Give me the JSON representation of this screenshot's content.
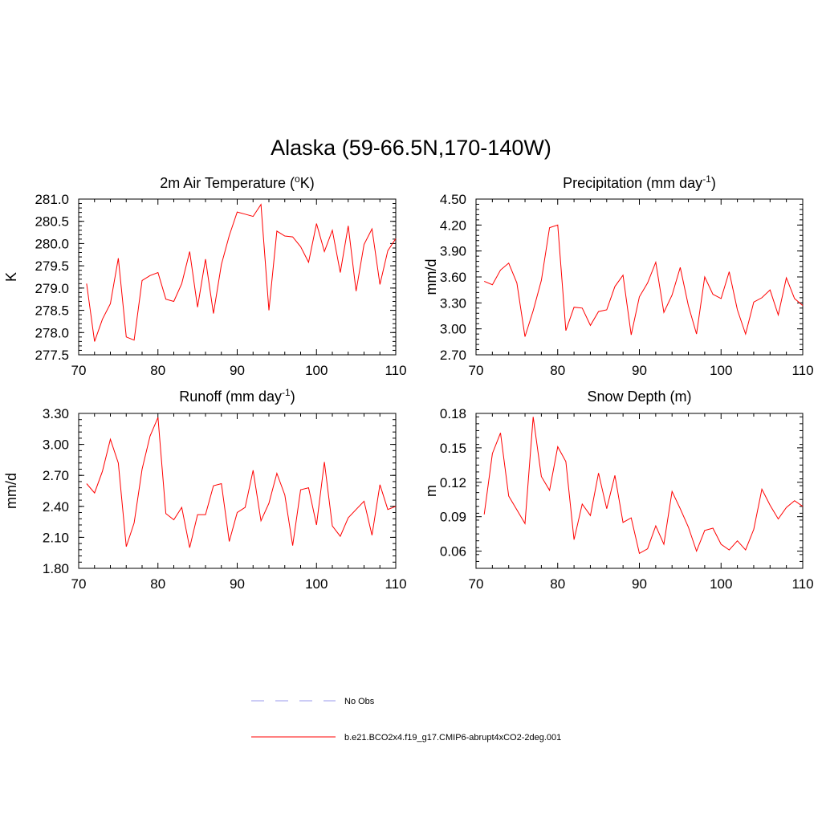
{
  "figure": {
    "title": "Alaska (59-66.5N,170-140W)"
  },
  "colors": {
    "series": "#ff0000",
    "obs": "#9a9aee",
    "axis": "#000000"
  },
  "chart_data": [
    {
      "type": "line",
      "id": "temp",
      "title": "2m Air Temperature (",
      "title_sup": "o",
      "title_after": "K)",
      "ylabel": "K",
      "xlim": [
        70,
        110
      ],
      "ylim": [
        277.5,
        281.0
      ],
      "xticks": [
        70,
        80,
        90,
        100,
        110
      ],
      "yticks": [
        277.5,
        278.0,
        278.5,
        279.0,
        279.5,
        280.0,
        280.5,
        281.0
      ],
      "ytick_labels": [
        "277.5",
        "278.0",
        "278.5",
        "279.0",
        "279.5",
        "280.0",
        "280.5",
        "281.0"
      ],
      "x": [
        71,
        72,
        73,
        74,
        75,
        76,
        77,
        78,
        79,
        80,
        81,
        82,
        83,
        84,
        85,
        86,
        87,
        88,
        89,
        90,
        91,
        92,
        93,
        94,
        95,
        96,
        97,
        98,
        99,
        100,
        101,
        102,
        103,
        104,
        105,
        106,
        107,
        108,
        109,
        110
      ],
      "values": [
        279.1,
        277.8,
        278.3,
        278.65,
        279.67,
        277.9,
        277.83,
        279.17,
        279.28,
        279.35,
        278.75,
        278.7,
        279.1,
        279.82,
        278.57,
        279.65,
        278.43,
        279.53,
        280.18,
        280.71,
        280.66,
        280.61,
        280.88,
        278.5,
        280.28,
        280.17,
        280.15,
        279.93,
        279.58,
        280.45,
        279.82,
        280.3,
        279.35,
        280.4,
        278.93,
        279.98,
        280.33,
        279.08,
        279.84,
        280.11
      ]
    },
    {
      "type": "line",
      "id": "precip",
      "title": "Precipitation (mm day",
      "title_sup": "-1",
      "title_after": ")",
      "ylabel": "mm/d",
      "xlim": [
        70,
        110
      ],
      "ylim": [
        2.7,
        4.5
      ],
      "xticks": [
        70,
        80,
        90,
        100,
        110
      ],
      "yticks": [
        2.7,
        3.0,
        3.3,
        3.6,
        3.9,
        4.2,
        4.5
      ],
      "ytick_labels": [
        "2.70",
        "3.00",
        "3.30",
        "3.60",
        "3.90",
        "4.20",
        "4.50"
      ],
      "x": [
        71,
        72,
        73,
        74,
        75,
        76,
        77,
        78,
        79,
        80,
        81,
        82,
        83,
        84,
        85,
        86,
        87,
        88,
        89,
        90,
        91,
        92,
        93,
        94,
        95,
        96,
        97,
        98,
        99,
        100,
        101,
        102,
        103,
        104,
        105,
        106,
        107,
        108,
        109,
        110
      ],
      "values": [
        3.55,
        3.51,
        3.68,
        3.76,
        3.53,
        2.91,
        3.21,
        3.56,
        4.17,
        4.2,
        2.98,
        3.25,
        3.24,
        3.04,
        3.2,
        3.22,
        3.49,
        3.62,
        2.93,
        3.37,
        3.53,
        3.77,
        3.19,
        3.39,
        3.71,
        3.27,
        2.94,
        3.6,
        3.4,
        3.35,
        3.66,
        3.22,
        2.94,
        3.31,
        3.36,
        3.45,
        3.16,
        3.59,
        3.35,
        3.27
      ]
    },
    {
      "type": "line",
      "id": "runoff",
      "title": "Runoff (mm day",
      "title_sup": "-1",
      "title_after": ")",
      "ylabel": "mm/d",
      "xlim": [
        70,
        110
      ],
      "ylim": [
        1.8,
        3.3
      ],
      "xticks": [
        70,
        80,
        90,
        100,
        110
      ],
      "yticks": [
        1.8,
        2.1,
        2.4,
        2.7,
        3.0,
        3.3
      ],
      "ytick_labels": [
        "1.80",
        "2.10",
        "2.40",
        "2.70",
        "3.00",
        "3.30"
      ],
      "x": [
        71,
        72,
        73,
        74,
        75,
        76,
        77,
        78,
        79,
        80,
        81,
        82,
        83,
        84,
        85,
        86,
        87,
        88,
        89,
        90,
        91,
        92,
        93,
        94,
        95,
        96,
        97,
        98,
        99,
        100,
        101,
        102,
        103,
        104,
        105,
        106,
        107,
        108,
        109,
        110
      ],
      "values": [
        2.62,
        2.53,
        2.74,
        3.05,
        2.82,
        2.01,
        2.24,
        2.76,
        3.08,
        3.26,
        2.33,
        2.27,
        2.39,
        2.0,
        2.32,
        2.32,
        2.6,
        2.62,
        2.06,
        2.34,
        2.39,
        2.75,
        2.26,
        2.43,
        2.72,
        2.51,
        2.02,
        2.56,
        2.58,
        2.22,
        2.83,
        2.21,
        2.11,
        2.29,
        2.37,
        2.45,
        2.12,
        2.61,
        2.37,
        2.4
      ]
    },
    {
      "type": "line",
      "id": "snow",
      "title": "Snow Depth (m)",
      "title_sup": "",
      "title_after": "",
      "ylabel": "m",
      "xlim": [
        70,
        110
      ],
      "ylim": [
        0.045,
        0.18
      ],
      "xticks": [
        70,
        80,
        90,
        100,
        110
      ],
      "yticks": [
        0.06,
        0.09,
        0.12,
        0.15,
        0.18
      ],
      "ytick_labels": [
        "0.06",
        "0.09",
        "0.12",
        "0.15",
        "0.18"
      ],
      "x": [
        71,
        72,
        73,
        74,
        75,
        76,
        77,
        78,
        79,
        80,
        81,
        82,
        83,
        84,
        85,
        86,
        87,
        88,
        89,
        90,
        91,
        92,
        93,
        94,
        95,
        96,
        97,
        98,
        99,
        100,
        101,
        102,
        103,
        104,
        105,
        106,
        107,
        108,
        109,
        110
      ],
      "values": [
        0.092,
        0.145,
        0.163,
        0.108,
        0.096,
        0.084,
        0.177,
        0.125,
        0.113,
        0.151,
        0.138,
        0.07,
        0.101,
        0.091,
        0.128,
        0.097,
        0.126,
        0.085,
        0.089,
        0.058,
        0.062,
        0.082,
        0.066,
        0.112,
        0.097,
        0.081,
        0.06,
        0.078,
        0.08,
        0.066,
        0.061,
        0.069,
        0.061,
        0.079,
        0.114,
        0.1,
        0.088,
        0.098,
        0.104,
        0.099
      ]
    }
  ],
  "legend": [
    {
      "label": "No Obs",
      "style": "dashed"
    },
    {
      "label": "b.e21.BCO2x4.f19_g17.CMIP6-abrupt4xCO2-2deg.001",
      "style": "solid"
    }
  ]
}
